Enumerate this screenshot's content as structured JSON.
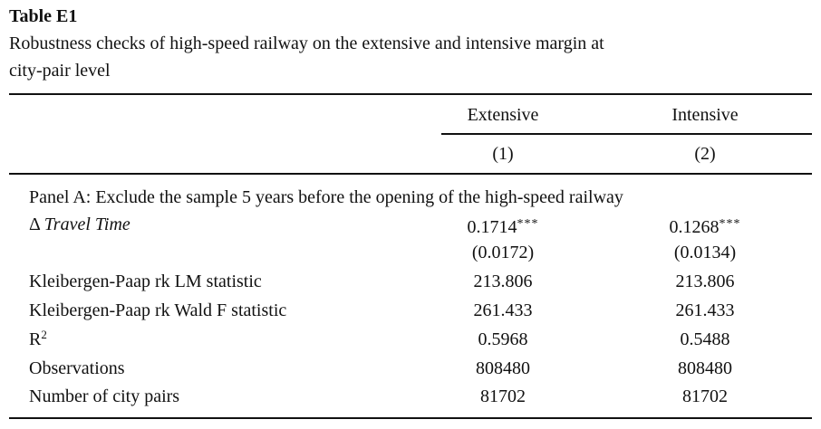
{
  "header": {
    "title": "Table E1",
    "caption": [
      "Robustness checks of high-speed railway on the extensive and intensive margin at",
      "city-pair level"
    ]
  },
  "table": {
    "columns": [
      "Extensive",
      "Intensive"
    ],
    "column_numbers": [
      "(1)",
      "(2)"
    ],
    "panel": "Panel A: Exclude the sample 5 years before the opening of the high-speed railway",
    "rows": [
      {
        "symbol": "Δ",
        "label": "Travel Time",
        "values": [
          "0.1714",
          "0.1268"
        ],
        "stars": [
          "***",
          "***"
        ]
      },
      {
        "values": [
          "(0.0172)",
          "(0.0134)"
        ]
      },
      {
        "label": "Kleibergen-Paap rk LM statistic",
        "values": [
          "213.806",
          "213.806"
        ]
      },
      {
        "label": "Kleibergen-Paap rk Wald F statistic",
        "values": [
          "261.433",
          "261.433"
        ]
      },
      {
        "label": "R",
        "sup": "2",
        "values": [
          "0.5968",
          "0.5488"
        ]
      },
      {
        "label": "Observations",
        "values": [
          "808480",
          "808480"
        ]
      },
      {
        "label": "Number of city pairs",
        "values": [
          "81702",
          "81702"
        ]
      }
    ]
  }
}
